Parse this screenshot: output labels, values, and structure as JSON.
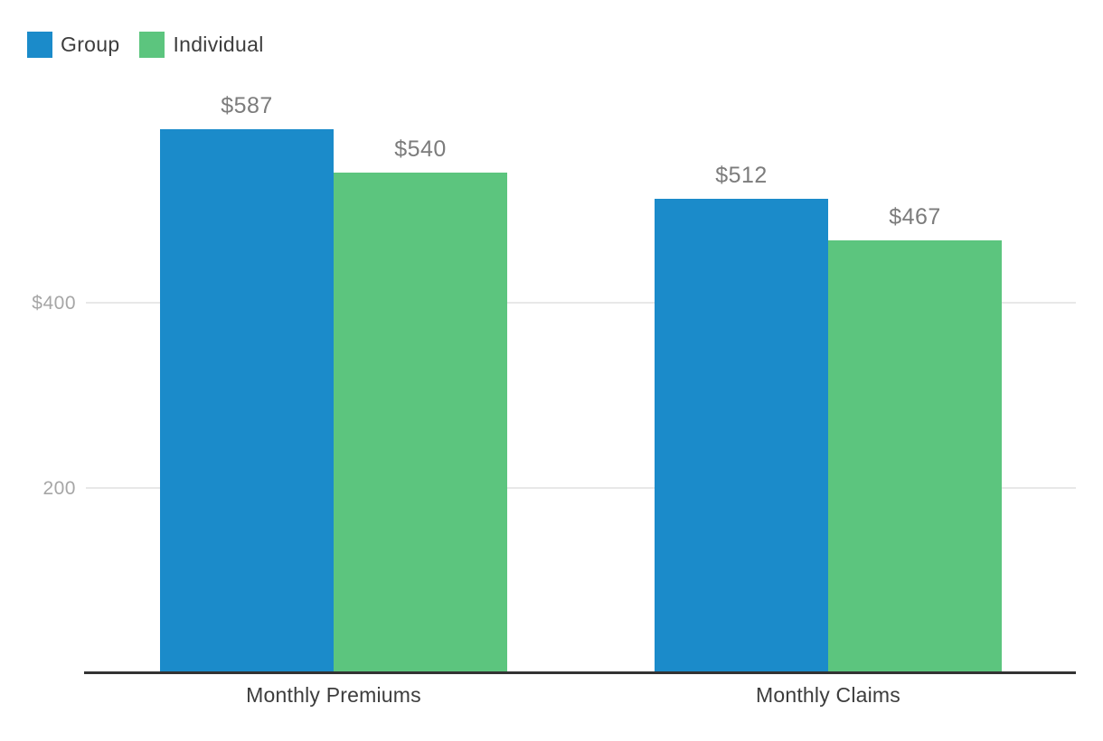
{
  "colors": {
    "series_group": "#1b8bca",
    "series_individual": "#5cc57e",
    "gridline": "#e8e8e8",
    "axis_line": "#333333",
    "value_label": "#7c7c7c",
    "tick_label": "#a6a6a6",
    "category_label": "#3d3d3d",
    "background": "#ffffff"
  },
  "legend": {
    "items": [
      {
        "label": "Group",
        "color": "#1b8bca"
      },
      {
        "label": "Individual",
        "color": "#5cc57e"
      }
    ]
  },
  "chart_data": {
    "type": "bar",
    "title": "",
    "xlabel": "",
    "ylabel": "",
    "categories": [
      "Monthly Premiums",
      "Monthly Claims"
    ],
    "series": [
      {
        "name": "Group",
        "color": "#1b8bca",
        "values": [
          587,
          512
        ],
        "value_labels": [
          "$587",
          "$512"
        ]
      },
      {
        "name": "Individual",
        "color": "#5cc57e",
        "values": [
          540,
          467
        ],
        "value_labels": [
          "$540",
          "$467"
        ]
      }
    ],
    "y_ticks": [
      {
        "value": 400,
        "label": "$400"
      },
      {
        "value": 200,
        "label": "200"
      }
    ],
    "ylim": [
      0,
      640
    ],
    "grid": "horizontal",
    "legend_position": "top-left",
    "value_labels_shown": true
  }
}
